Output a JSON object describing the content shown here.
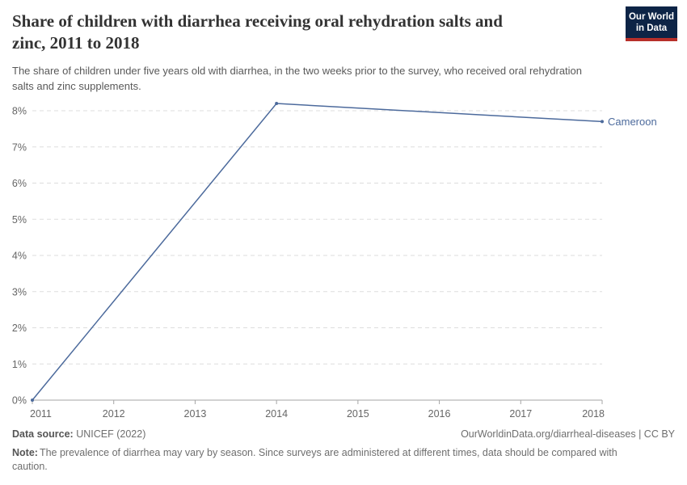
{
  "header": {
    "title_lines": [
      "Share of children with diarrhea receiving oral rehydration salts and",
      "zinc, 2011 to 2018"
    ],
    "subtitle_lines": [
      "The share of children under five years old with diarrhea, in the two weeks prior to the survey, who received oral rehydration",
      "salts and zinc supplements."
    ],
    "logo": {
      "line1": "Our World",
      "line2": "in Data",
      "bg_color": "#0D2446",
      "accent_color": "#B72F2A"
    }
  },
  "chart_data": {
    "type": "line",
    "title": "Share of children with diarrhea receiving oral rehydration salts and zinc, 2011 to 2018",
    "xlabel": "",
    "ylabel": "",
    "xlim": [
      2011,
      2018
    ],
    "ylim": [
      0,
      8.6
    ],
    "x_ticks": [
      2011,
      2012,
      2013,
      2014,
      2015,
      2016,
      2017,
      2018
    ],
    "y_ticks": [
      0,
      1,
      2,
      3,
      4,
      5,
      6,
      7,
      8
    ],
    "y_tick_suffix": "%",
    "grid": "horizontal-dashed",
    "legend": "line-end-label",
    "series": [
      {
        "name": "Cameroon",
        "color": "#4C6A9C",
        "points": [
          [
            2011,
            0
          ],
          [
            2014,
            8.2
          ],
          [
            2018,
            7.7
          ]
        ]
      }
    ]
  },
  "footer": {
    "datasource_label": "Data source:",
    "datasource_value": "UNICEF (2022)",
    "link": "OurWorldinData.org/diarrheal-diseases | CC BY",
    "note_label": "Note:",
    "note_lines": [
      "The prevalence of diarrhea may vary by season. Since surveys are administered at different times, data should be compared with",
      "caution."
    ]
  }
}
